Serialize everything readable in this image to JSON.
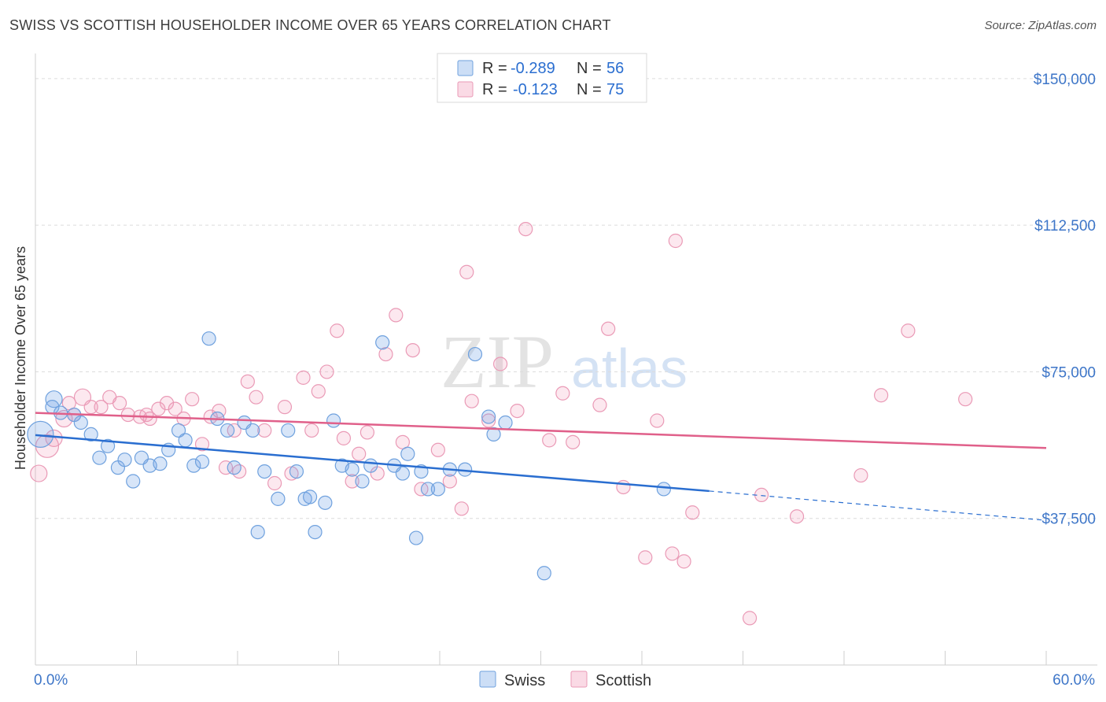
{
  "title": "SWISS VS SCOTTISH HOUSEHOLDER INCOME OVER 65 YEARS CORRELATION CHART",
  "source": "Source: ZipAtlas.com",
  "watermark": {
    "zip": "ZIP",
    "atlas": "atlas"
  },
  "colors": {
    "swiss_fill": "rgba(110,160,230,0.28)",
    "swiss_stroke": "#6fa1de",
    "swiss_line": "#2a6ed0",
    "scottish_fill": "rgba(240,150,180,0.22)",
    "scottish_stroke": "#ea9ab6",
    "scottish_line": "#e0608a",
    "tick_label": "#3e76c8"
  },
  "legend_top": [
    {
      "r_label": "R =",
      "r_value": "-0.289",
      "n_label": "N =",
      "n_value": "56",
      "series": "Swiss"
    },
    {
      "r_label": "R =",
      "r_value": "-0.123",
      "n_label": "N =",
      "n_value": "75",
      "series": "Scottish"
    }
  ],
  "chart_data": {
    "type": "scatter",
    "title": "SWISS VS SCOTTISH HOUSEHOLDER INCOME OVER 65 YEARS CORRELATION CHART",
    "xlabel": "",
    "ylabel": "Householder Income Over 65 years",
    "xlim": [
      0,
      60
    ],
    "ylim": [
      0,
      155000
    ],
    "x_tick_labels": [
      "0.0%",
      "60.0%"
    ],
    "y_ticks": [
      37500,
      75000,
      112500,
      150000
    ],
    "y_tick_labels": [
      "$37,500",
      "$75,000",
      "$112,500",
      "$150,000"
    ],
    "grid": true,
    "legend_position": "bottom-center",
    "series": [
      {
        "name": "Swiss",
        "r": -0.289,
        "n": 56,
        "trend": {
          "x_start": 0,
          "y_start": 58800,
          "x_end": 40,
          "y_end": 44500,
          "dashed_to_x": 60,
          "dashed_to_y": 37000
        },
        "points": [
          [
            0.3,
            59000,
            16
          ],
          [
            1.1,
            68000,
            10
          ],
          [
            1.5,
            64500,
            8
          ],
          [
            2.3,
            64000,
            8
          ],
          [
            2.7,
            62000,
            8
          ],
          [
            3.3,
            59000,
            8
          ],
          [
            3.8,
            53000,
            8
          ],
          [
            4.3,
            56000,
            8
          ],
          [
            4.9,
            50500,
            8
          ],
          [
            5.3,
            52500,
            8
          ],
          [
            5.8,
            47000,
            8
          ],
          [
            6.3,
            53000,
            8
          ],
          [
            6.8,
            51000,
            8
          ],
          [
            7.4,
            51500,
            8
          ],
          [
            7.9,
            55000,
            8
          ],
          [
            8.5,
            60000,
            8
          ],
          [
            8.9,
            57500,
            8
          ],
          [
            9.4,
            51000,
            8
          ],
          [
            9.9,
            52000,
            8
          ],
          [
            10.3,
            83500,
            8
          ],
          [
            10.8,
            63000,
            8
          ],
          [
            11.4,
            60000,
            8
          ],
          [
            11.8,
            50500,
            8
          ],
          [
            12.4,
            62000,
            8
          ],
          [
            12.9,
            60000,
            8
          ],
          [
            13.2,
            34000,
            8
          ],
          [
            13.6,
            49500,
            8
          ],
          [
            14.4,
            42500,
            8
          ],
          [
            15.0,
            60000,
            8
          ],
          [
            15.5,
            49500,
            8
          ],
          [
            16.0,
            42500,
            8
          ],
          [
            16.3,
            43000,
            8
          ],
          [
            16.6,
            34000,
            8
          ],
          [
            17.2,
            41500,
            8
          ],
          [
            17.7,
            62500,
            8
          ],
          [
            18.2,
            51000,
            8
          ],
          [
            18.8,
            50000,
            8
          ],
          [
            19.4,
            47000,
            8
          ],
          [
            19.9,
            51000,
            8
          ],
          [
            20.6,
            82500,
            8
          ],
          [
            21.3,
            51000,
            8
          ],
          [
            21.8,
            49000,
            8
          ],
          [
            22.1,
            54000,
            8
          ],
          [
            22.6,
            32500,
            8
          ],
          [
            22.9,
            49500,
            8
          ],
          [
            23.3,
            45000,
            8
          ],
          [
            23.9,
            45000,
            8
          ],
          [
            24.6,
            50000,
            8
          ],
          [
            25.5,
            50000,
            8
          ],
          [
            26.1,
            79500,
            8
          ],
          [
            26.9,
            63500,
            8
          ],
          [
            27.2,
            59000,
            8
          ],
          [
            27.9,
            62000,
            8
          ],
          [
            30.2,
            23500,
            8
          ],
          [
            37.3,
            45000,
            8
          ],
          [
            1.0,
            66000,
            8
          ]
        ]
      },
      {
        "name": "Scottish",
        "r": -0.123,
        "n": 75,
        "trend": {
          "x_start": 0,
          "y_start": 64500,
          "x_end": 60,
          "y_end": 55500
        },
        "points": [
          [
            0.2,
            49000,
            10
          ],
          [
            0.7,
            56000,
            14
          ],
          [
            1.1,
            58000,
            10
          ],
          [
            1.7,
            63000,
            10
          ],
          [
            2.3,
            64000,
            8
          ],
          [
            2.8,
            68500,
            10
          ],
          [
            3.3,
            66000,
            8
          ],
          [
            3.9,
            66000,
            8
          ],
          [
            4.4,
            68500,
            8
          ],
          [
            5.0,
            67000,
            8
          ],
          [
            5.5,
            64000,
            8
          ],
          [
            6.2,
            63500,
            8
          ],
          [
            6.8,
            63000,
            8
          ],
          [
            7.3,
            65500,
            8
          ],
          [
            7.8,
            67000,
            8
          ],
          [
            8.3,
            65500,
            8
          ],
          [
            8.8,
            63000,
            8
          ],
          [
            9.3,
            68000,
            8
          ],
          [
            9.9,
            56500,
            8
          ],
          [
            10.4,
            63500,
            8
          ],
          [
            10.9,
            65000,
            8
          ],
          [
            11.3,
            50500,
            8
          ],
          [
            11.8,
            60000,
            8
          ],
          [
            12.1,
            49500,
            8
          ],
          [
            12.6,
            72500,
            8
          ],
          [
            13.1,
            68500,
            8
          ],
          [
            13.6,
            60000,
            8
          ],
          [
            14.2,
            46500,
            8
          ],
          [
            14.8,
            66000,
            8
          ],
          [
            15.2,
            49000,
            8
          ],
          [
            15.9,
            73500,
            8
          ],
          [
            16.4,
            60000,
            8
          ],
          [
            16.8,
            70000,
            8
          ],
          [
            17.3,
            75000,
            8
          ],
          [
            17.9,
            85500,
            8
          ],
          [
            18.3,
            58000,
            8
          ],
          [
            18.8,
            47000,
            8
          ],
          [
            19.2,
            54000,
            8
          ],
          [
            19.7,
            59500,
            8
          ],
          [
            20.3,
            49000,
            8
          ],
          [
            20.8,
            79500,
            8
          ],
          [
            21.4,
            89500,
            8
          ],
          [
            21.8,
            57000,
            8
          ],
          [
            22.4,
            80500,
            8
          ],
          [
            22.9,
            45000,
            8
          ],
          [
            23.9,
            55000,
            8
          ],
          [
            24.6,
            47000,
            8
          ],
          [
            25.3,
            40000,
            8
          ],
          [
            25.6,
            100500,
            8
          ],
          [
            25.9,
            67500,
            8
          ],
          [
            26.9,
            62500,
            8
          ],
          [
            27.6,
            77000,
            8
          ],
          [
            28.6,
            65000,
            8
          ],
          [
            29.1,
            111500,
            8
          ],
          [
            30.5,
            57500,
            8
          ],
          [
            31.3,
            69500,
            8
          ],
          [
            31.9,
            57000,
            8
          ],
          [
            33.5,
            66500,
            8
          ],
          [
            34.0,
            86000,
            8
          ],
          [
            34.9,
            45500,
            8
          ],
          [
            36.2,
            27500,
            8
          ],
          [
            36.9,
            62500,
            8
          ],
          [
            37.8,
            28500,
            8
          ],
          [
            38.0,
            108500,
            8
          ],
          [
            38.5,
            26500,
            8
          ],
          [
            39.0,
            39000,
            8
          ],
          [
            42.4,
            12000,
            8
          ],
          [
            43.1,
            43500,
            8
          ],
          [
            45.2,
            38000,
            8
          ],
          [
            49.0,
            48500,
            8
          ],
          [
            50.2,
            69000,
            8
          ],
          [
            51.8,
            85500,
            8
          ],
          [
            55.2,
            68000,
            8
          ],
          [
            2.0,
            67000,
            8
          ],
          [
            6.6,
            64000,
            8
          ]
        ]
      }
    ]
  },
  "legend_bottom": [
    "Swiss",
    "Scottish"
  ]
}
